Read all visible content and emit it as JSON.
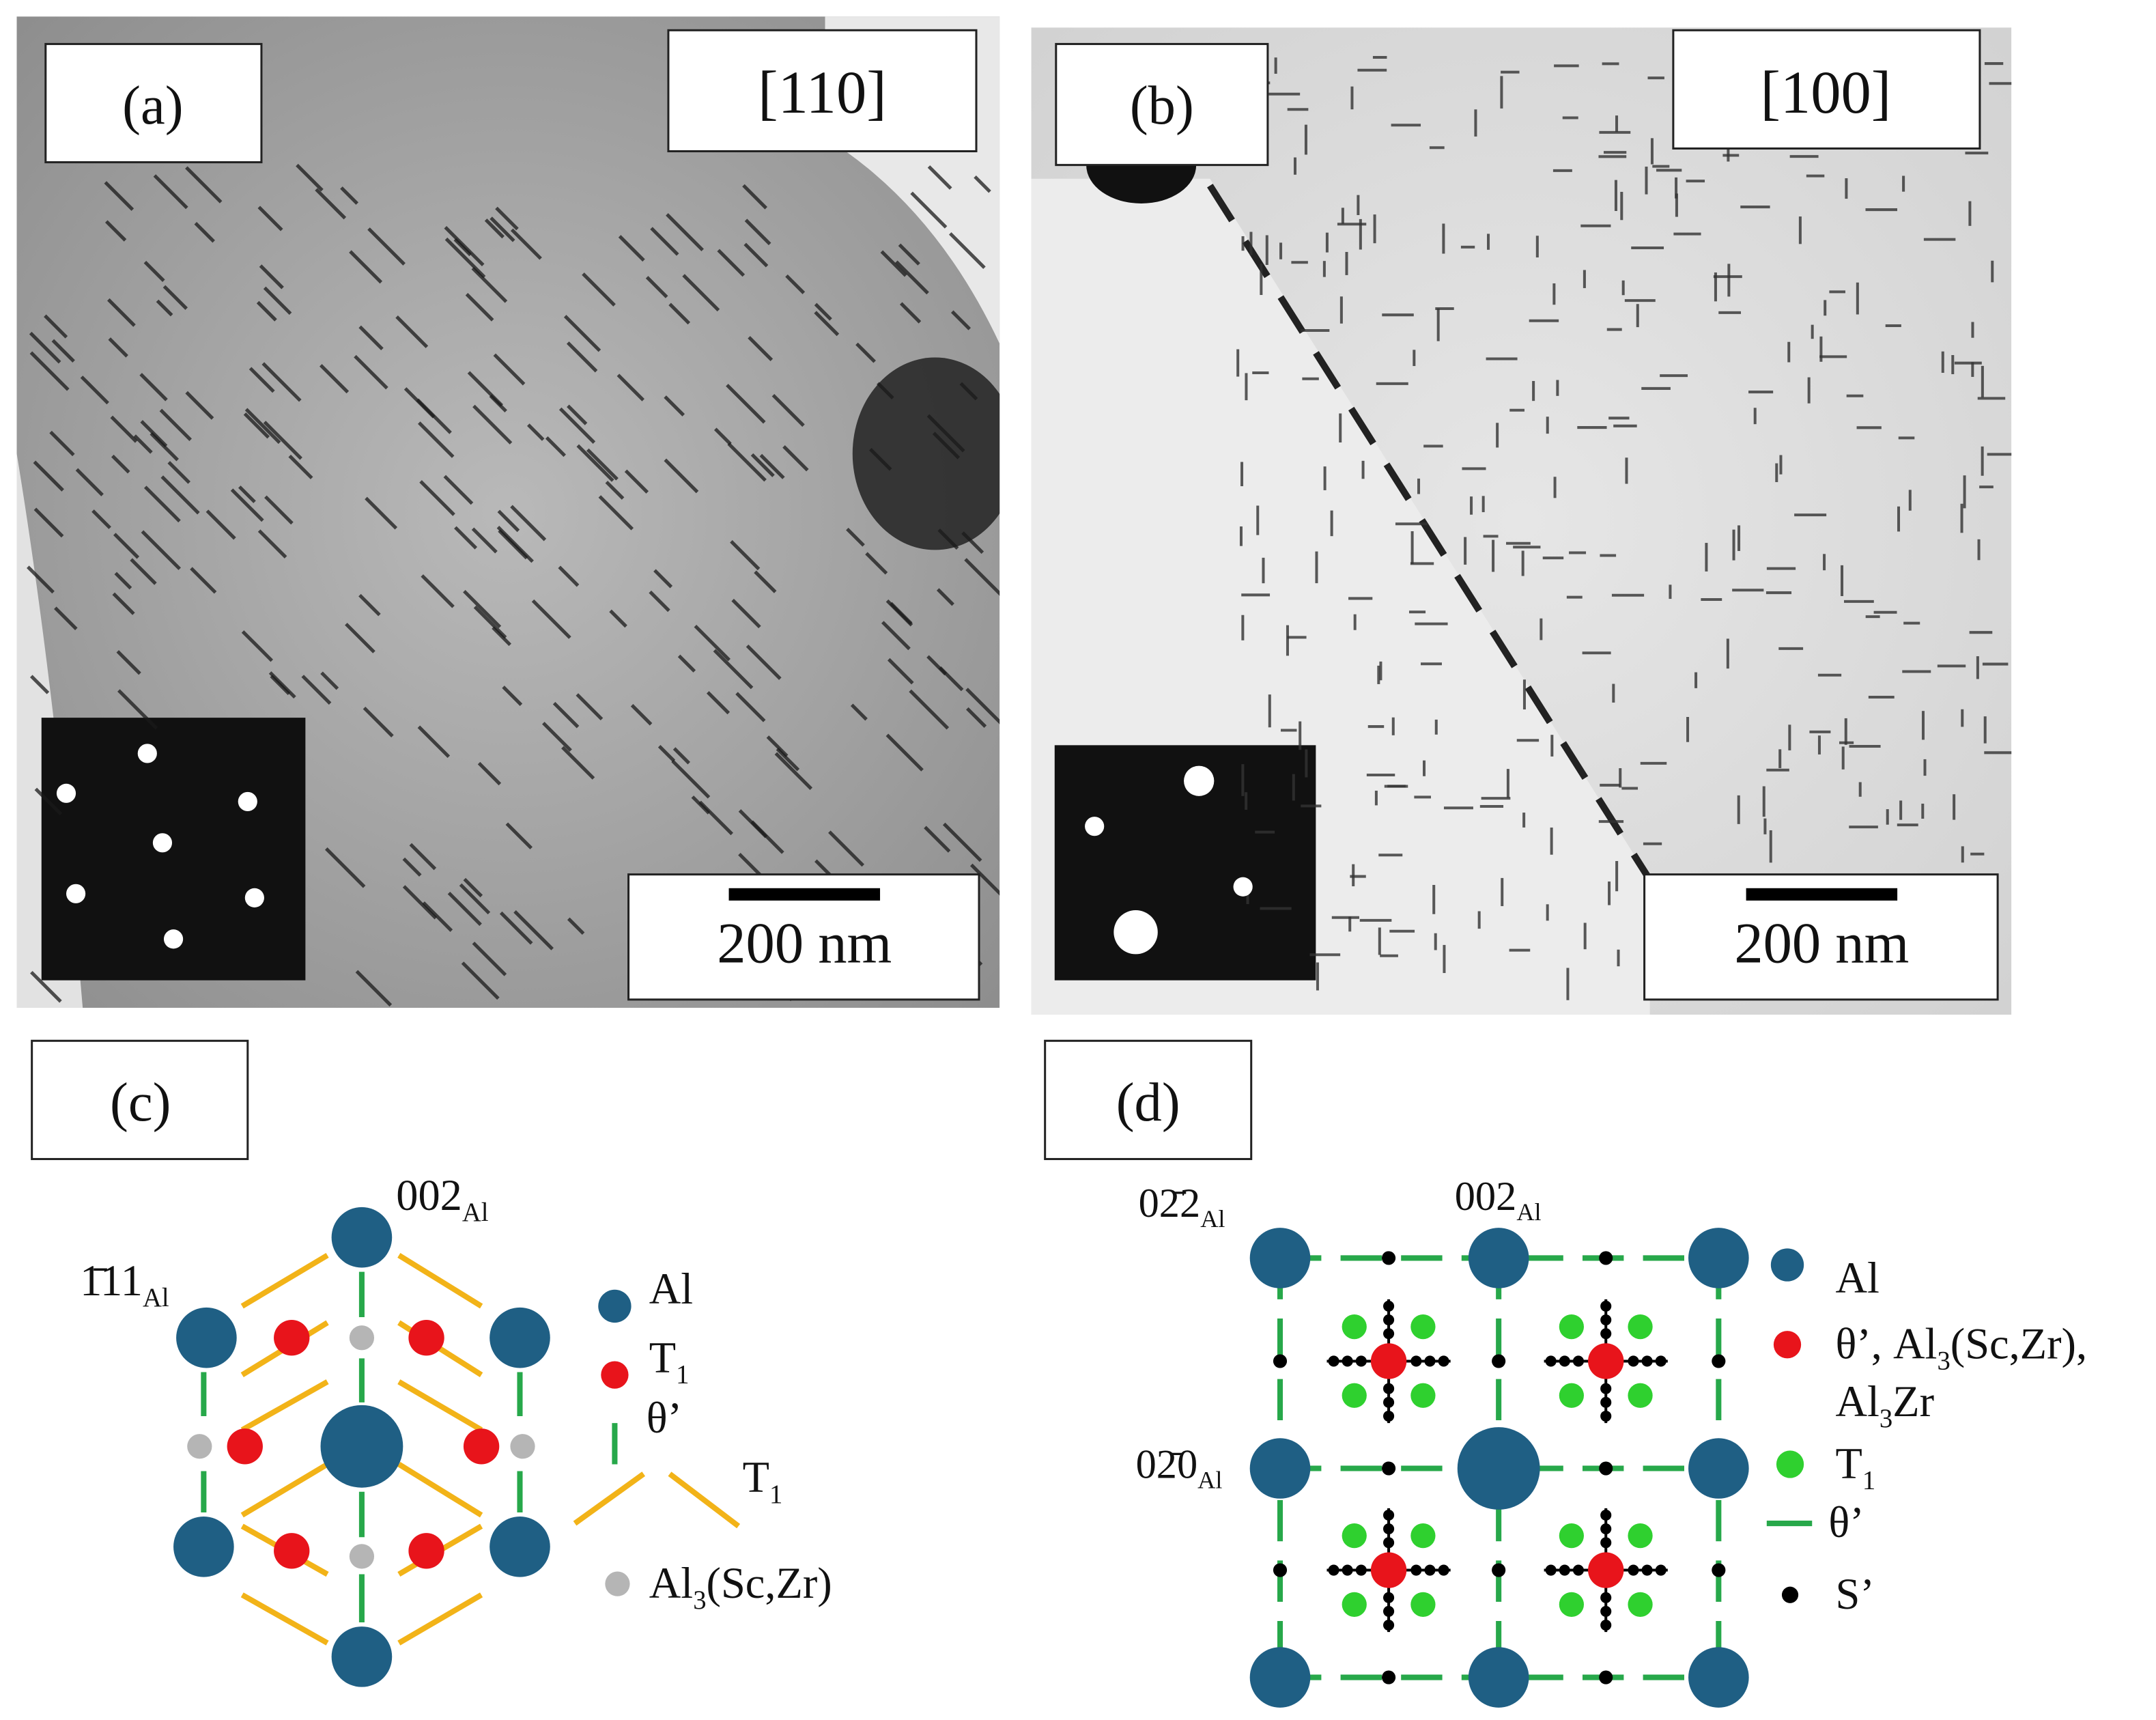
{
  "panels": [
    {
      "label": "(a)",
      "zone_axis": "[110]",
      "scale_bar": "200 nm"
    },
    {
      "label": "(b)",
      "zone_axis": "[100]",
      "scale_bar": "200 nm"
    }
  ],
  "diagrams": [
    {
      "label": "(c)",
      "indices": [
        [
          "1̄11",
          "Al"
        ],
        [
          "002",
          "Al"
        ]
      ],
      "legend": [
        [
          "Al"
        ],
        [
          "T",
          "1"
        ],
        [
          "θ’"
        ],
        [
          "T",
          "1"
        ],
        [
          "Al",
          "3",
          "(Sc,Zr)"
        ]
      ]
    },
    {
      "label": "(d)",
      "indices": [
        [
          "02̄2",
          "Al"
        ],
        [
          "002",
          "Al"
        ],
        [
          "02̄0",
          "Al"
        ]
      ],
      "legend": [
        [
          "Al"
        ],
        [
          "θ’, Al",
          "3",
          "(Sc,Zr),"
        ],
        [
          "Al",
          "3",
          "Zr"
        ],
        [
          "T",
          "1"
        ],
        [
          "θ’"
        ],
        [
          "S’"
        ]
      ]
    }
  ]
}
